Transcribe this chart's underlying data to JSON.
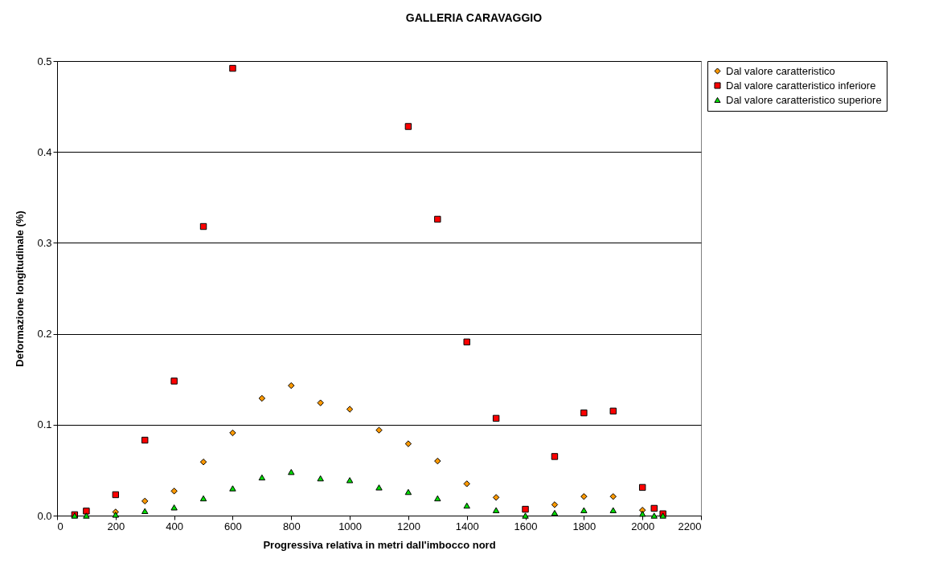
{
  "chart_data": {
    "type": "scatter",
    "title": "GALLERIA CARAVAGGIO",
    "xlabel": "Progressiva relativa in metri dall'imbocco nord",
    "ylabel": "Deformazione longitudinale (%)",
    "x": [
      60,
      100,
      200,
      300,
      400,
      500,
      600,
      700,
      800,
      900,
      1000,
      1100,
      1200,
      1300,
      1400,
      1500,
      1600,
      1700,
      1800,
      1900,
      2000,
      2040,
      2070
    ],
    "series": [
      {
        "name": "Dal valore caratteristico",
        "color": "#ff9900",
        "marker": "diamond",
        "values": [
          null,
          null,
          0.004,
          0.016,
          0.027,
          0.059,
          0.091,
          0.129,
          0.143,
          0.124,
          0.117,
          0.094,
          0.079,
          0.06,
          0.035,
          0.02,
          null,
          0.012,
          0.021,
          0.021,
          0.006,
          null,
          null
        ]
      },
      {
        "name": "Dal valore caratteristico inferiore",
        "color": "#ff0000",
        "marker": "square",
        "values": [
          0.001,
          0.005,
          0.023,
          0.083,
          0.148,
          0.318,
          0.492,
          null,
          null,
          null,
          null,
          null,
          0.428,
          0.326,
          0.191,
          0.107,
          0.007,
          0.065,
          0.113,
          0.115,
          0.031,
          0.008,
          0.002
        ]
      },
      {
        "name": "Dal valore caratteristico superiore",
        "color": "#00dd00",
        "marker": "triangle",
        "values": [
          0,
          0,
          0.001,
          0.005,
          0.009,
          0.019,
          0.03,
          0.042,
          0.048,
          0.041,
          0.039,
          0.031,
          0.026,
          0.019,
          0.011,
          0.006,
          0,
          0.003,
          0.006,
          0.006,
          0.002,
          0,
          0
        ]
      }
    ],
    "xlim": [
      0,
      2200
    ],
    "xticks": [
      0,
      200,
      400,
      600,
      800,
      1000,
      1200,
      1400,
      1600,
      1800,
      2000,
      2200
    ],
    "ylim": [
      0,
      0.5
    ],
    "yticks": [
      {
        "value": 0,
        "label": "0.0"
      },
      {
        "value": 0.1,
        "label": "0.1"
      },
      {
        "value": 0.2,
        "label": "0.2"
      },
      {
        "value": 0.3,
        "label": "0.3"
      },
      {
        "value": 0.4,
        "label": "0.4"
      },
      {
        "value": 0.5,
        "label": "0.5"
      }
    ],
    "grid": "y",
    "legend": "right"
  }
}
